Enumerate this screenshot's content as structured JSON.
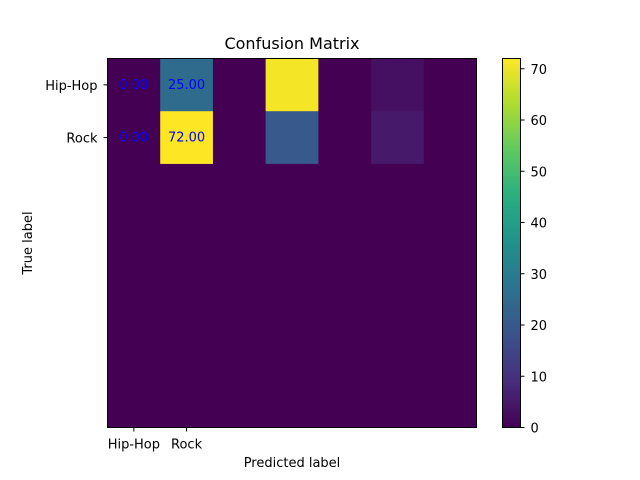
{
  "chart_data": {
    "type": "heatmap",
    "title": "Confusion Matrix",
    "xlabel": "Predicted label",
    "ylabel": "True label",
    "x_tick_labels": [
      "Hip-Hop",
      "Rock"
    ],
    "y_tick_labels": [
      "Hip-Hop",
      "Rock"
    ],
    "grid_cols": 7,
    "grid_rows": 7,
    "matrix": [
      [
        0,
        25,
        0,
        71,
        0,
        3,
        0
      ],
      [
        0,
        72,
        0,
        20,
        0,
        5,
        0
      ],
      [
        0,
        0,
        0,
        0,
        0,
        0,
        0
      ],
      [
        0,
        0,
        0,
        0,
        0,
        0,
        0
      ],
      [
        0,
        0,
        0,
        0,
        0,
        0,
        0
      ],
      [
        0,
        0,
        0,
        0,
        0,
        0,
        0
      ],
      [
        0,
        0,
        0,
        0,
        0,
        0,
        0
      ]
    ],
    "annotations": [
      {
        "row": 0,
        "col": 0,
        "text": "0.00"
      },
      {
        "row": 0,
        "col": 1,
        "text": "25.00"
      },
      {
        "row": 1,
        "col": 0,
        "text": "0.00"
      },
      {
        "row": 1,
        "col": 1,
        "text": "72.00"
      }
    ],
    "annotation_color": "#0000ff",
    "colormap": "viridis",
    "vmin": 0,
    "vmax": 72,
    "colorbar_ticks": [
      0,
      10,
      20,
      30,
      40,
      50,
      60,
      70
    ],
    "grid": false
  }
}
